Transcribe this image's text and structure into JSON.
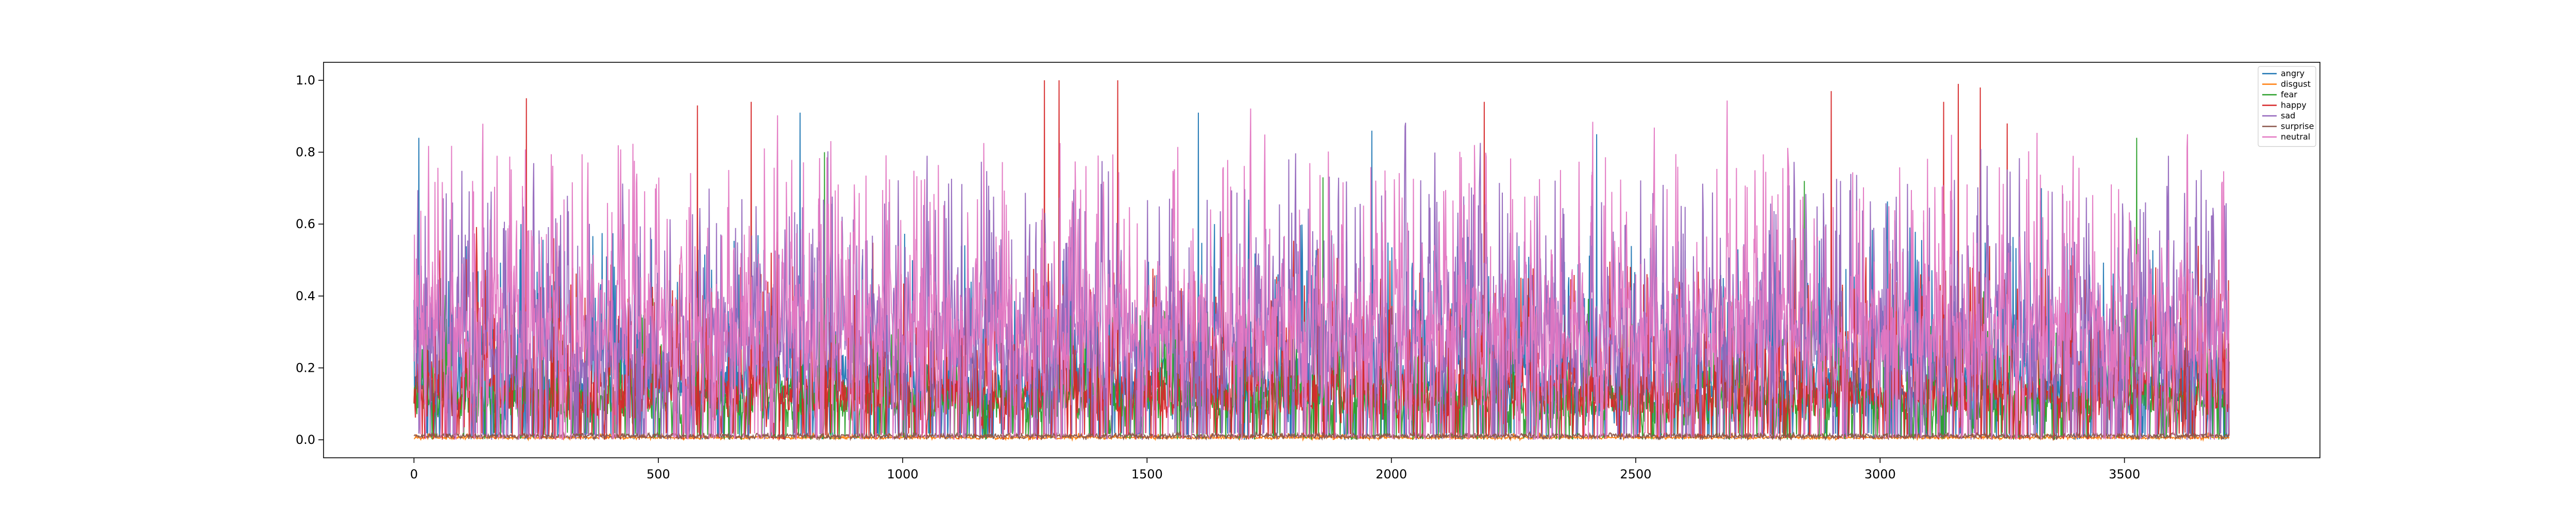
{
  "chart_data": {
    "type": "line",
    "title": "",
    "xlabel": "",
    "ylabel": "",
    "xlim": [
      -185,
      3900
    ],
    "ylim": [
      -0.05,
      1.05
    ],
    "n_points": 3715,
    "x_ticks": [
      0,
      500,
      1000,
      1500,
      2000,
      2500,
      3000,
      3500
    ],
    "x_tick_labels": [
      "0",
      "500",
      "1000",
      "1500",
      "2000",
      "2500",
      "3000",
      "3500"
    ],
    "y_ticks": [
      0.0,
      0.2,
      0.4,
      0.6,
      0.8,
      1.0
    ],
    "y_tick_labels": [
      "0.0",
      "0.2",
      "0.4",
      "0.6",
      "0.8",
      "1.0"
    ],
    "grid": false,
    "legend_position": "top-right",
    "series": [
      {
        "name": "angry",
        "color": "#1f77b4",
        "base": 0.06,
        "spread": 0.45,
        "burst": 0.18,
        "peaks": [
          [
            10,
            0.84
          ],
          [
            790,
            0.91
          ],
          [
            1605,
            0.91
          ],
          [
            1960,
            0.86
          ],
          [
            2420,
            0.85
          ],
          [
            3330,
            0.7
          ]
        ]
      },
      {
        "name": "disgust",
        "color": "#ff7f0e",
        "base": 0.003,
        "spread": 0.015,
        "burst": 0.0,
        "peaks": []
      },
      {
        "name": "fear",
        "color": "#2ca02c",
        "base": 0.05,
        "spread": 0.28,
        "burst": 0.12,
        "peaks": [
          [
            75,
            0.47
          ],
          [
            840,
            0.8
          ],
          [
            1860,
            0.73
          ],
          [
            2845,
            0.72
          ],
          [
            3525,
            0.84
          ]
        ]
      },
      {
        "name": "happy",
        "color": "#d62728",
        "base": 0.04,
        "spread": 0.4,
        "burst": 0.22,
        "peaks": [
          [
            230,
            0.95
          ],
          [
            580,
            0.93
          ],
          [
            690,
            0.94
          ],
          [
            1290,
            1.0
          ],
          [
            1320,
            1.0
          ],
          [
            1440,
            1.0
          ],
          [
            2190,
            0.94
          ],
          [
            2900,
            0.97
          ],
          [
            3130,
            0.94
          ],
          [
            3160,
            0.99
          ],
          [
            3205,
            0.98
          ],
          [
            3260,
            0.88
          ]
        ]
      },
      {
        "name": "sad",
        "color": "#9467bd",
        "base": 0.15,
        "spread": 0.5,
        "burst": 0.25,
        "peaks": [
          [
            1050,
            0.79
          ],
          [
            1790,
            0.78
          ],
          [
            3590,
            0.79
          ]
        ]
      },
      {
        "name": "surprise",
        "color": "#8c564b",
        "base": 0.005,
        "spread": 0.03,
        "burst": 0.0,
        "peaks": []
      },
      {
        "name": "neutral",
        "color": "#e377c2",
        "base": 0.18,
        "spread": 0.55,
        "burst": 0.2,
        "peaks": [
          [
            120,
            0.72
          ],
          [
            170,
            0.79
          ],
          [
            430,
            0.6
          ],
          [
            2170,
            0.82
          ],
          [
            3480,
            0.63
          ]
        ]
      }
    ]
  }
}
